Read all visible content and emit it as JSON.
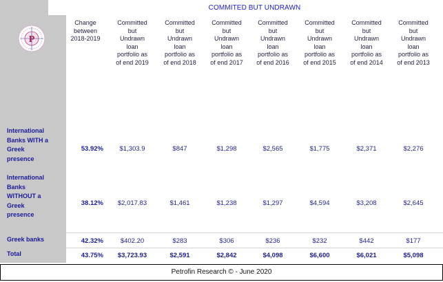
{
  "title": "COMMITED BUT UNDRAWN",
  "logo_letter": "P",
  "headers": [
    "Change\nbetween\n2018-2019",
    "Committed\nbut\nUndrawn\nloan\nportfolio as\nof end 2019",
    "Committed\nbut\nUndrawn\nloan\nportfolio as\nof end 2018",
    "Committed\nbut\nUndrawn\nloan\nportfolio as\nof end 2017",
    "Committed\nbut\nUndrawn\nloan\nportfolio as\nof end 2016",
    "Committed\nbut\nUndrawn\nloan\nportfolio as\nof end 2015",
    "Committed\nbut\nUndrawn\nloan\nportfolio as\nof end 2014",
    "Committed\nbut\nUndrawn\nloan\nportfolio as\nof end 2013"
  ],
  "rows": [
    {
      "label": "International\nBanks WITH a\nGreek\npresence",
      "change": "53.92%",
      "values": [
        "$1,303.9",
        "$847",
        "$1,298",
        "$2,565",
        "$1,775",
        "$2,371",
        "$2,276"
      ]
    },
    {
      "label": "International\nBanks\nWITHOUT a\nGreek\npresence",
      "change": "38.12%",
      "values": [
        "$2,017.83",
        "$1,461",
        "$1,238",
        "$1,297",
        "$4,594",
        "$3,208",
        "$2,645"
      ]
    },
    {
      "label": "Greek banks",
      "change": "42.32%",
      "values": [
        "$402.20",
        "$283",
        "$306",
        "$236",
        "$232",
        "$442",
        "$177"
      ]
    },
    {
      "label": "Total",
      "change": "43.75%",
      "values": [
        "$3,723.93",
        "$2,591",
        "$2,842",
        "$4,098",
        "$6,600",
        "$6,021",
        "$5,098"
      ]
    }
  ],
  "footer": "Petrofin Research © - June 2020"
}
